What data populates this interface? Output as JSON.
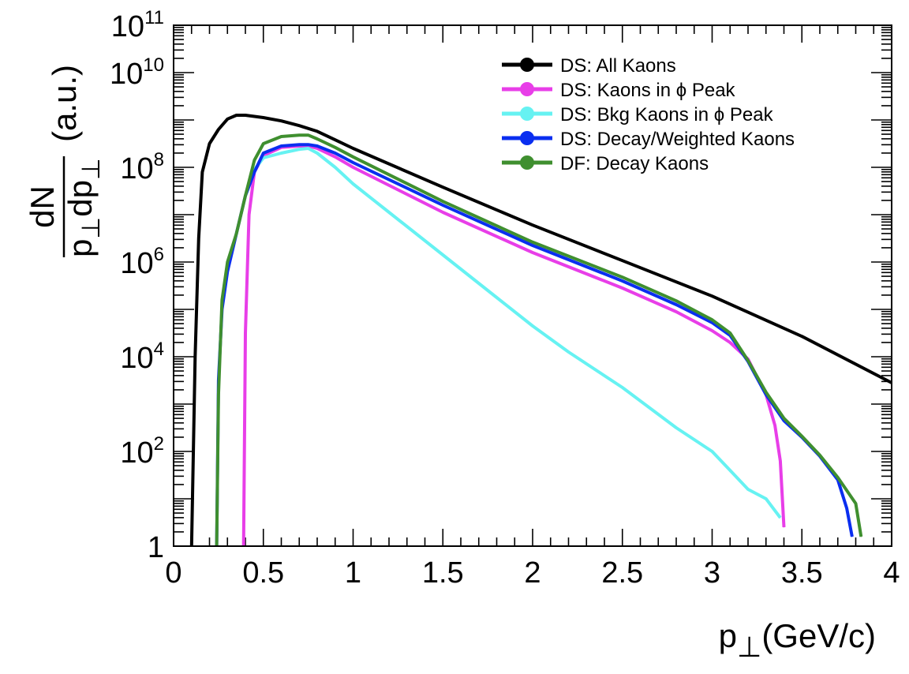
{
  "chart_data": {
    "type": "line",
    "title": "",
    "xlabel": "p⊥(GeV/c)",
    "xlabel_parts": {
      "base": "p",
      "sub": "⊥",
      "rest": "(GeV/c)"
    },
    "ylabel": "dN/(p⊥dp⊥) (a.u.)",
    "ylabel_parts": {
      "num": "dN",
      "den_a": "p",
      "den_sub1": "⊥",
      "den_b": "dp",
      "den_sub2": "⊥",
      "units": "(a.u.)"
    },
    "xlim": [
      0,
      4
    ],
    "ylim": [
      1,
      100000000000
    ],
    "yscale": "log",
    "grid": false,
    "legend_position": "top-right",
    "x_ticks": [
      "0",
      "0.5",
      "1",
      "1.5",
      "2",
      "2.5",
      "3",
      "3.5",
      "4"
    ],
    "y_ticks": [
      {
        "label": "1",
        "base": "",
        "exp": ""
      },
      {
        "label": "10^2",
        "base": "10",
        "exp": "2"
      },
      {
        "label": "10^4",
        "base": "10",
        "exp": "4"
      },
      {
        "label": "10^6",
        "base": "10",
        "exp": "6"
      },
      {
        "label": "10^8",
        "base": "10",
        "exp": "8"
      },
      {
        "label": "10^10",
        "base": "10",
        "exp": "10"
      },
      {
        "label": "10^11",
        "base": "10",
        "exp": "11"
      }
    ],
    "series": [
      {
        "name": "DS: All Kaons",
        "color": "#000000",
        "x": [
          0.1,
          0.12,
          0.14,
          0.16,
          0.2,
          0.25,
          0.3,
          0.35,
          0.4,
          0.5,
          0.6,
          0.7,
          0.8,
          0.9,
          1.0,
          1.5,
          2.0,
          2.5,
          3.0,
          3.5,
          4.0
        ],
        "log10y": [
          0,
          4.0,
          6.5,
          7.9,
          8.5,
          8.8,
          9.02,
          9.1,
          9.1,
          9.05,
          8.98,
          8.88,
          8.76,
          8.58,
          8.4,
          7.58,
          6.78,
          6.03,
          5.28,
          4.43,
          3.45
        ]
      },
      {
        "name": "DS: Kaons in ϕ Peak",
        "color": "#e83ee8",
        "x": [
          0.39,
          0.4,
          0.42,
          0.45,
          0.5,
          0.6,
          0.7,
          0.75,
          0.8,
          0.9,
          1.0,
          1.5,
          2.0,
          2.5,
          2.8,
          3.0,
          3.1,
          3.2,
          3.3,
          3.35,
          3.38,
          3.4
        ],
        "log10y": [
          0,
          4.5,
          7.0,
          7.9,
          8.25,
          8.42,
          8.45,
          8.45,
          8.4,
          8.22,
          8.0,
          7.05,
          6.2,
          5.45,
          4.95,
          4.55,
          4.3,
          3.95,
          3.2,
          2.55,
          1.8,
          0.4
        ]
      },
      {
        "name": "DS: Bkg Kaons in ϕ Peak",
        "color": "#66f2f2",
        "x": [
          0.44,
          0.5,
          0.6,
          0.7,
          0.75,
          0.8,
          0.9,
          1.0,
          1.2,
          1.5,
          1.8,
          2.0,
          2.2,
          2.5,
          2.8,
          3.0,
          3.1,
          3.2,
          3.3,
          3.38
        ],
        "log10y": [
          7.9,
          8.2,
          8.3,
          8.38,
          8.4,
          8.3,
          8.0,
          7.65,
          7.05,
          6.15,
          5.25,
          4.65,
          4.1,
          3.35,
          2.5,
          2.0,
          1.6,
          1.2,
          1.0,
          0.6
        ]
      },
      {
        "name": "DS: Decay/Weighted Kaons",
        "color": "#0a2ef0",
        "x": [
          0.24,
          0.25,
          0.27,
          0.3,
          0.35,
          0.4,
          0.45,
          0.5,
          0.6,
          0.7,
          0.75,
          0.8,
          0.9,
          1.0,
          1.5,
          2.0,
          2.5,
          2.8,
          3.0,
          3.1,
          3.2,
          3.3,
          3.4,
          3.5,
          3.6,
          3.7,
          3.75,
          3.78
        ],
        "log10y": [
          0,
          3.5,
          5.0,
          5.8,
          6.6,
          7.4,
          7.9,
          8.3,
          8.45,
          8.48,
          8.48,
          8.45,
          8.3,
          8.1,
          7.2,
          6.35,
          5.6,
          5.1,
          4.72,
          4.45,
          3.9,
          3.2,
          2.65,
          2.3,
          1.9,
          1.4,
          0.8,
          0.2
        ]
      },
      {
        "name": "DF: Decay Kaons",
        "color": "#3f8f2f",
        "x": [
          0.24,
          0.25,
          0.27,
          0.3,
          0.35,
          0.4,
          0.45,
          0.5,
          0.6,
          0.7,
          0.75,
          0.8,
          0.9,
          1.0,
          1.5,
          2.0,
          2.5,
          2.8,
          3.0,
          3.1,
          3.2,
          3.3,
          3.4,
          3.5,
          3.6,
          3.7,
          3.8,
          3.83
        ],
        "log10y": [
          0,
          3.2,
          5.2,
          6.0,
          6.6,
          7.4,
          8.15,
          8.5,
          8.65,
          8.68,
          8.68,
          8.6,
          8.42,
          8.22,
          7.28,
          6.42,
          5.68,
          5.18,
          4.78,
          4.5,
          3.92,
          3.25,
          2.7,
          2.32,
          1.92,
          1.45,
          0.9,
          0.2
        ]
      }
    ]
  }
}
